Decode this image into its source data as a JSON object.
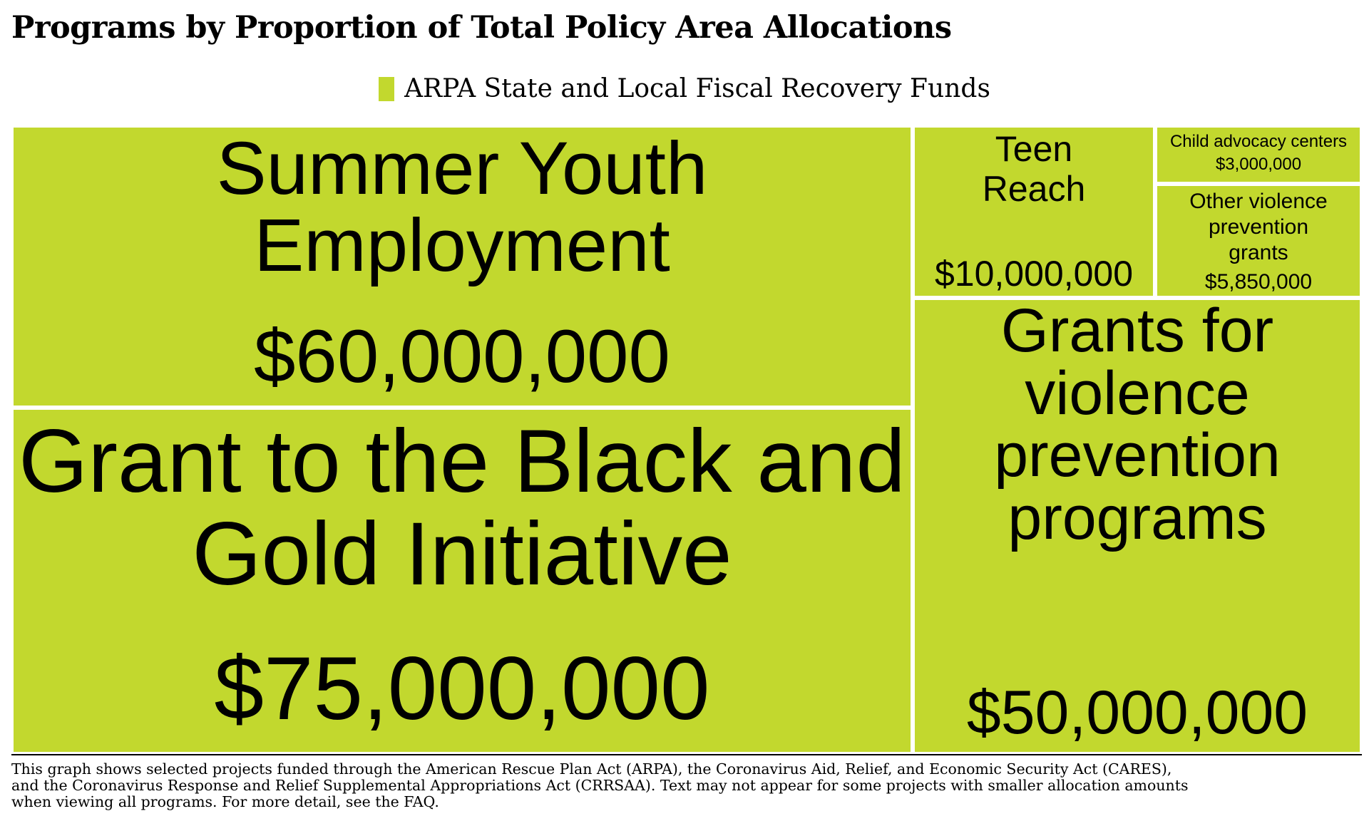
{
  "title": "Programs by Proportion of Total Policy Area Allocations",
  "legend": {
    "label": "ARPA State and Local Fiscal Recovery Funds",
    "color": "#c2d82e"
  },
  "chart_data": {
    "type": "treemap",
    "series_name": "ARPA State and Local Fiscal Recovery Funds",
    "color": "#c2d82e",
    "items": [
      {
        "name": "Grant to the Black and Gold Initiative",
        "value": 75000000,
        "value_label": "$75,000,000"
      },
      {
        "name": "Summer Youth Employment",
        "value": 60000000,
        "value_label": "$60,000,000"
      },
      {
        "name": "Grants for violence prevention programs",
        "value": 50000000,
        "value_label": "$50,000,000"
      },
      {
        "name": "Teen Reach",
        "value": 10000000,
        "value_label": "$10,000,000"
      },
      {
        "name": "Other violence prevention grants",
        "value": 5850000,
        "value_label": "$5,850,000"
      },
      {
        "name": "Child advocacy centers",
        "value": 3000000,
        "value_label": "$3,000,000"
      }
    ]
  },
  "footnote": "This graph shows selected projects funded through the American Rescue Plan Act (ARPA), the Coronavirus Aid, Relief, and Economic Security Act (CARES),\nand the Coronavirus Response and Relief Supplemental Appropriations Act (CRRSAA). Text may not appear for some projects with smaller allocation amounts\n when viewing all programs. For more detail, see the FAQ."
}
